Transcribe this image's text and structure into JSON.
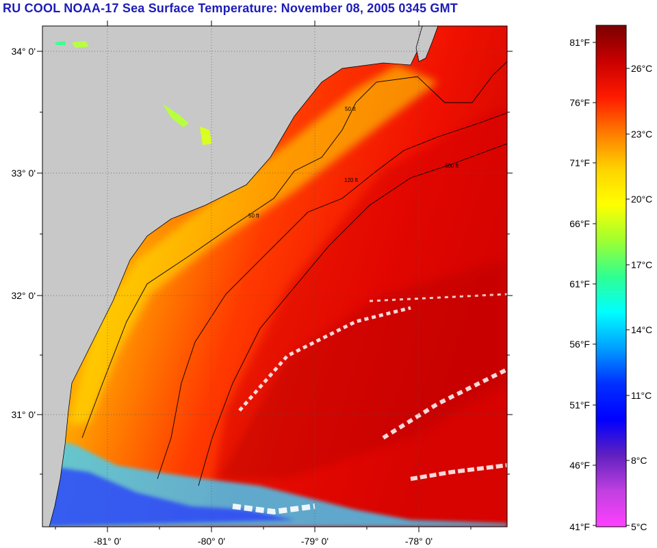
{
  "title": "RU COOL  NOAA-17  Sea Surface Temperature:  November 08, 2005 0345 GMT",
  "map": {
    "latitude_labels": [
      "34° 0'",
      "33° 0'",
      "32° 0'",
      "31° 0'"
    ],
    "longitude_labels": [
      "-81° 0'",
      "-80° 0'",
      "-79° 0'",
      "-78° 0'"
    ],
    "grid": "dotted",
    "land_color": "#c8c8c8",
    "isobath_labels": [
      "50 ft",
      "120 ft",
      "600 ft"
    ]
  },
  "colorbar": {
    "fahrenheit_labels": [
      "81°F",
      "76°F",
      "71°F",
      "66°F",
      "61°F",
      "56°F",
      "51°F",
      "46°F",
      "41°F"
    ],
    "celsius_labels": [
      "26°C",
      "23°C",
      "20°C",
      "17°C",
      "14°C",
      "11°C",
      "8°C",
      "5°C"
    ],
    "colors_top_to_bottom": [
      "#7a0000",
      "#c80000",
      "#ff1a00",
      "#ff7a00",
      "#ffd200",
      "#ffff00",
      "#a0ff30",
      "#30ff90",
      "#00ffff",
      "#00a0ff",
      "#0030ff",
      "#0000ff",
      "#6020c0",
      "#c040e0",
      "#ff40ff"
    ]
  }
}
